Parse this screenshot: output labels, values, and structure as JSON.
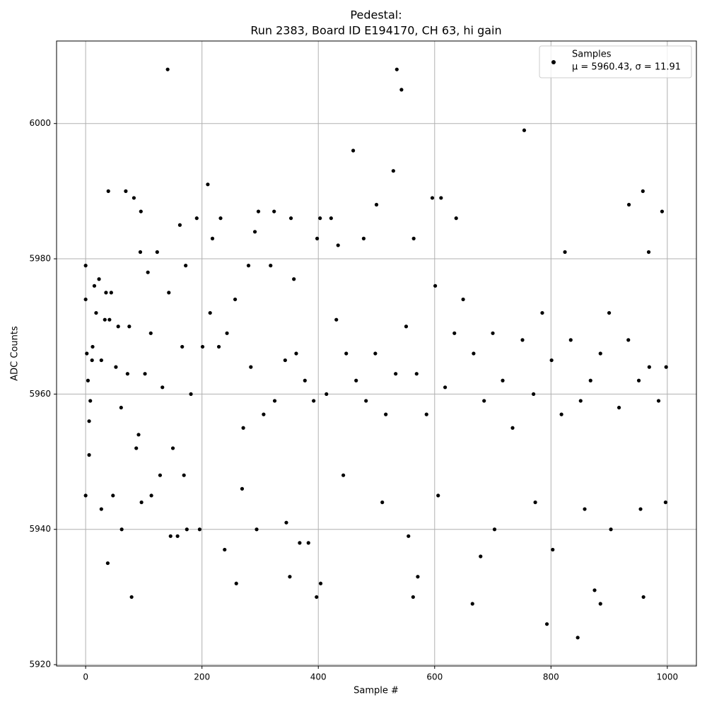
{
  "chart_data": {
    "type": "scatter",
    "title": "Pedestal:",
    "subtitle": "Run 2383, Board ID E194170, CH 63, hi gain",
    "x_label": "Sample #",
    "y_label": "ADC Counts",
    "legend_position": "upper right",
    "legend_note": "μ = 5960.43, σ = 11.91",
    "grid": true,
    "xlim": [
      -50,
      1050
    ],
    "ylim": [
      5919.8,
      6012.2
    ],
    "xticks": [
      0,
      200,
      400,
      600,
      800,
      1000
    ],
    "yticks": [
      5920,
      5940,
      5960,
      5980,
      6000
    ],
    "x": [
      0,
      0,
      0,
      2,
      4,
      6,
      6,
      8,
      11,
      12,
      15,
      18,
      23,
      27,
      33,
      35,
      38,
      39,
      41,
      44,
      47,
      52,
      56,
      62,
      69,
      75,
      79,
      83,
      87,
      95,
      94,
      102,
      107,
      113,
      123,
      128,
      141,
      143,
      146,
      158,
      162,
      172,
      174,
      191,
      196,
      210,
      218,
      232,
      239,
      259,
      280,
      291,
      294,
      297,
      318,
      324,
      351,
      353,
      358,
      368,
      383,
      397,
      398,
      403,
      404,
      422,
      434,
      460,
      478,
      500,
      529,
      535,
      543,
      563,
      564,
      571,
      596,
      611,
      637,
      665,
      679,
      754,
      793,
      803,
      824,
      846,
      875,
      885,
      934,
      959,
      958,
      968,
      991,
      997,
      998,
      61,
      72,
      91,
      112,
      132,
      150,
      166,
      181,
      201,
      214,
      229,
      243,
      257,
      271,
      284,
      306,
      325,
      343,
      362,
      377,
      392,
      414,
      431,
      448,
      465,
      482,
      498,
      516,
      533,
      551,
      569,
      586,
      601,
      618,
      634,
      649,
      667,
      685,
      700,
      717,
      734,
      751,
      770,
      785,
      801,
      818,
      834,
      851,
      868,
      885,
      900,
      917,
      933,
      951,
      969,
      985,
      27,
      96,
      169,
      269,
      345,
      443,
      510,
      555,
      606,
      703,
      773,
      858,
      903,
      954
    ],
    "series": [
      {
        "name": "Samples",
        "color": "#000000",
        "values": [
          5979,
          5974,
          5945,
          5966,
          5962,
          5956,
          5951,
          5959,
          5965,
          5967,
          5976,
          5972,
          5977,
          5965,
          5971,
          5975,
          5935,
          5990,
          5971,
          5975,
          5945,
          5964,
          5970,
          5940,
          5990,
          5970,
          5930,
          5989,
          5952,
          5987,
          5981,
          5963,
          5978,
          5945,
          5981,
          5948,
          6008,
          5975,
          5939,
          5939,
          5985,
          5979,
          5940,
          5986,
          5940,
          5991,
          5983,
          5986,
          5937,
          5932,
          5979,
          5984,
          5940,
          5987,
          5979,
          5987,
          5933,
          5986,
          5977,
          5938,
          5938,
          5930,
          5983,
          5986,
          5932,
          5986,
          5982,
          5996,
          5983,
          5988,
          5993,
          6008,
          6005,
          5930,
          5983,
          5933,
          5989,
          5989,
          5986,
          5929,
          5936,
          5999,
          5926,
          5937,
          5981,
          5924,
          5931,
          5929,
          5988,
          5930,
          5990,
          5981,
          5987,
          5944,
          5964,
          5958,
          5963,
          5954,
          5969,
          5961,
          5952,
          5967,
          5960,
          5967,
          5972,
          5967,
          5969,
          5974,
          5955,
          5964,
          5957,
          5959,
          5965,
          5966,
          5962,
          5959,
          5960,
          5971,
          5966,
          5962,
          5959,
          5966,
          5957,
          5963,
          5970,
          5963,
          5957,
          5976,
          5961,
          5969,
          5974,
          5966,
          5959,
          5969,
          5962,
          5955,
          5968,
          5960,
          5972,
          5965,
          5957,
          5968,
          5959,
          5962,
          5966,
          5972,
          5958,
          5968,
          5962,
          5964,
          5959,
          5943,
          5944,
          5948,
          5946,
          5941,
          5948,
          5944,
          5939,
          5945,
          5940,
          5944,
          5943,
          5940,
          5943
        ]
      }
    ]
  }
}
